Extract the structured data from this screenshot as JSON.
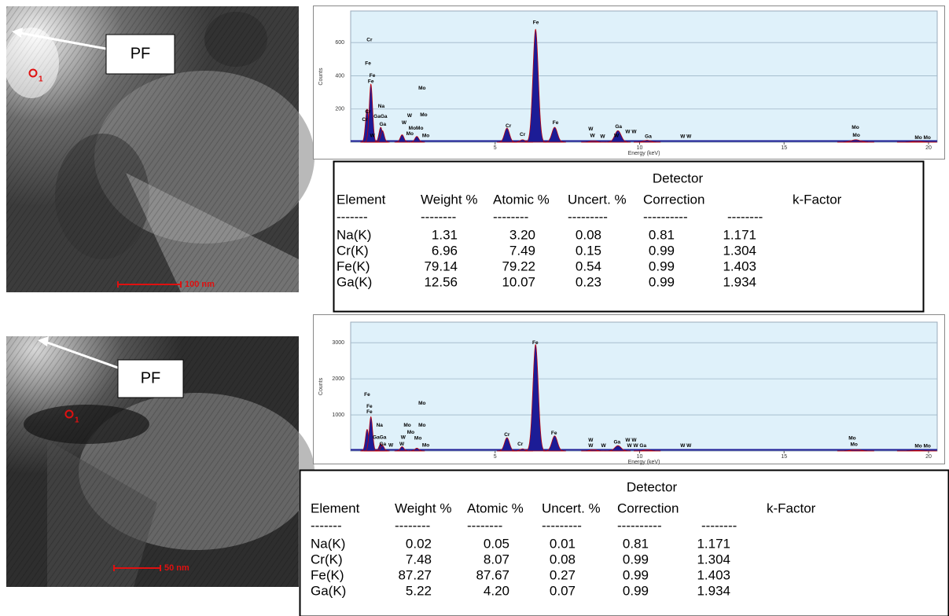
{
  "images": [
    {
      "label": "PF",
      "marker": "1",
      "scale_bar": "100 nm"
    },
    {
      "label": "PF",
      "marker": "1",
      "scale_bar": "50 nm"
    }
  ],
  "chart_data": [
    {
      "type": "spectrum",
      "xlabel": "Energy (keV)",
      "ylabel": "Counts",
      "xlim": [
        0,
        20.3
      ],
      "ylim": [
        0,
        790
      ],
      "xticks": [
        5,
        10,
        15,
        20
      ],
      "yticks": [
        200,
        400,
        600
      ],
      "grid": true,
      "color": "#1c1c96",
      "line_color": "#cc0000",
      "background": "#dff1fa",
      "peaks": {
        "x": [
          0.57,
          0.7,
          1.04,
          1.1,
          1.78,
          2.29,
          5.41,
          5.95,
          6.4,
          7.06,
          8.4,
          9.25,
          10.26,
          17.48,
          19.6
        ],
        "y": [
          200,
          350,
          90,
          70,
          45,
          35,
          85,
          15,
          680,
          90,
          8,
          70,
          12,
          15,
          5
        ]
      },
      "annotations": [
        {
          "text": "Fe",
          "x": 6.41,
          "y": 720
        },
        {
          "text": "Cr",
          "x": 0.65,
          "y": 616
        },
        {
          "text": "Fe",
          "x": 0.6,
          "y": 475
        },
        {
          "text": "Fe",
          "x": 0.75,
          "y": 400
        },
        {
          "text": "Fe",
          "x": 0.7,
          "y": 365
        },
        {
          "text": "Mo",
          "x": 2.47,
          "y": 324
        },
        {
          "text": "Na",
          "x": 1.06,
          "y": 216
        },
        {
          "text": "Cr",
          "x": 0.6,
          "y": 183
        },
        {
          "text": "Mo",
          "x": 2.53,
          "y": 165
        },
        {
          "text": "W",
          "x": 2.04,
          "y": 160
        },
        {
          "text": "GaGa",
          "x": 1.03,
          "y": 155
        },
        {
          "text": "Cr",
          "x": 0.49,
          "y": 136
        },
        {
          "text": "W",
          "x": 1.85,
          "y": 118
        },
        {
          "text": "Ga",
          "x": 1.11,
          "y": 108
        },
        {
          "text": "MoMo",
          "x": 2.26,
          "y": 85
        },
        {
          "text": "W",
          "x": 0.75,
          "y": 38
        },
        {
          "text": "Mo",
          "x": 2.05,
          "y": 50
        },
        {
          "text": "Mo",
          "x": 2.6,
          "y": 38
        },
        {
          "text": "Cr",
          "x": 5.46,
          "y": 99
        },
        {
          "text": "Cr",
          "x": 5.95,
          "y": 47
        },
        {
          "text": "Fe",
          "x": 7.09,
          "y": 118
        },
        {
          "text": "W",
          "x": 8.31,
          "y": 80
        },
        {
          "text": "W",
          "x": 8.37,
          "y": 38
        },
        {
          "text": "W",
          "x": 8.72,
          "y": 33
        },
        {
          "text": "Ga",
          "x": 9.27,
          "y": 94
        },
        {
          "text": "W",
          "x": 9.2,
          "y": 38
        },
        {
          "text": "W W",
          "x": 9.7,
          "y": 62
        },
        {
          "text": "Ga",
          "x": 10.3,
          "y": 33
        },
        {
          "text": "W W",
          "x": 11.6,
          "y": 33
        },
        {
          "text": "Mo",
          "x": 17.47,
          "y": 89
        },
        {
          "text": "Mo",
          "x": 17.5,
          "y": 42
        },
        {
          "text": "Mo Mo",
          "x": 19.8,
          "y": 28
        }
      ]
    },
    {
      "type": "spectrum",
      "xlabel": "Energy (keV)",
      "ylabel": "Counts",
      "xlim": [
        0,
        20.3
      ],
      "ylim": [
        0,
        3570
      ],
      "xticks": [
        5,
        10,
        15,
        20
      ],
      "yticks": [
        1000,
        2000,
        3000
      ],
      "grid": true,
      "color": "#1c1c96",
      "line_color": "#cc0000",
      "background": "#dff1fa",
      "peaks": {
        "x": [
          0.57,
          0.7,
          1.04,
          1.1,
          1.78,
          2.29,
          5.41,
          5.95,
          6.4,
          7.06,
          8.4,
          9.25,
          10.26,
          17.48,
          19.6
        ],
        "y": [
          600,
          950,
          200,
          150,
          120,
          80,
          370,
          60,
          2950,
          420,
          40,
          150,
          30,
          40,
          15
        ]
      },
      "annotations": [
        {
          "text": "Fe",
          "x": 6.39,
          "y": 2995
        },
        {
          "text": "Mo",
          "x": 2.47,
          "y": 1324
        },
        {
          "text": "Fe",
          "x": 0.57,
          "y": 1562
        },
        {
          "text": "Fe",
          "x": 0.65,
          "y": 1237
        },
        {
          "text": "Fe",
          "x": 0.65,
          "y": 1085
        },
        {
          "text": "Na",
          "x": 1.0,
          "y": 716
        },
        {
          "text": "Mo",
          "x": 1.96,
          "y": 716
        },
        {
          "text": "Mo",
          "x": 2.47,
          "y": 716
        },
        {
          "text": "Mo",
          "x": 2.08,
          "y": 520
        },
        {
          "text": "GaGa",
          "x": 1.0,
          "y": 370
        },
        {
          "text": "W",
          "x": 1.82,
          "y": 370
        },
        {
          "text": "Mo",
          "x": 2.33,
          "y": 350
        },
        {
          "text": "Ga",
          "x": 1.11,
          "y": 195
        },
        {
          "text": "W",
          "x": 1.39,
          "y": 160
        },
        {
          "text": "W",
          "x": 1.77,
          "y": 195
        },
        {
          "text": "Mo",
          "x": 2.6,
          "y": 160
        },
        {
          "text": "Cr",
          "x": 5.41,
          "y": 456
        },
        {
          "text": "Cr",
          "x": 5.87,
          "y": 195
        },
        {
          "text": "Fe",
          "x": 7.04,
          "y": 499
        },
        {
          "text": "W",
          "x": 8.31,
          "y": 300
        },
        {
          "text": "W",
          "x": 8.31,
          "y": 150
        },
        {
          "text": "W",
          "x": 8.75,
          "y": 150
        },
        {
          "text": "Ga",
          "x": 9.22,
          "y": 240
        },
        {
          "text": "W W",
          "x": 9.7,
          "y": 300
        },
        {
          "text": "W W Ga",
          "x": 9.9,
          "y": 150
        },
        {
          "text": "W W",
          "x": 11.6,
          "y": 150
        },
        {
          "text": "Mo",
          "x": 17.36,
          "y": 350
        },
        {
          "text": "Mo",
          "x": 17.42,
          "y": 175
        },
        {
          "text": "Mo Mo",
          "x": 19.8,
          "y": 130
        }
      ]
    }
  ],
  "tables": [
    {
      "header_top": "Detector",
      "columns": [
        "Element",
        "Weight %",
        "Atomic %",
        "Uncert. %",
        "Correction",
        "k-Factor"
      ],
      "separators": [
        "-------",
        "--------",
        "--------",
        "---------",
        "----------",
        "--------"
      ],
      "rows": [
        [
          "Na(K)",
          "1.31",
          "3.20",
          "0.08",
          "0.81",
          "1.171"
        ],
        [
          "Cr(K)",
          "6.96",
          "7.49",
          "0.15",
          "0.99",
          "1.304"
        ],
        [
          "Fe(K)",
          "79.14",
          "79.22",
          "0.54",
          "0.99",
          "1.403"
        ],
        [
          "Ga(K)",
          "12.56",
          "10.07",
          "0.23",
          "0.99",
          "1.934"
        ]
      ]
    },
    {
      "header_top": "Detector",
      "columns": [
        "Element",
        "Weight %",
        "Atomic %",
        "Uncert. %",
        "Correction",
        "k-Factor"
      ],
      "separators": [
        "-------",
        "--------",
        "--------",
        "---------",
        "----------",
        "--------"
      ],
      "rows": [
        [
          "Na(K)",
          "0.02",
          "0.05",
          "0.01",
          "0.81",
          "1.171"
        ],
        [
          "Cr(K)",
          "7.48",
          "8.07",
          "0.08",
          "0.99",
          "1.304"
        ],
        [
          "Fe(K)",
          "87.27",
          "87.67",
          "0.27",
          "0.99",
          "1.403"
        ],
        [
          "Ga(K)",
          "5.22",
          "4.20",
          "0.07",
          "0.99",
          "1.934"
        ]
      ]
    }
  ]
}
